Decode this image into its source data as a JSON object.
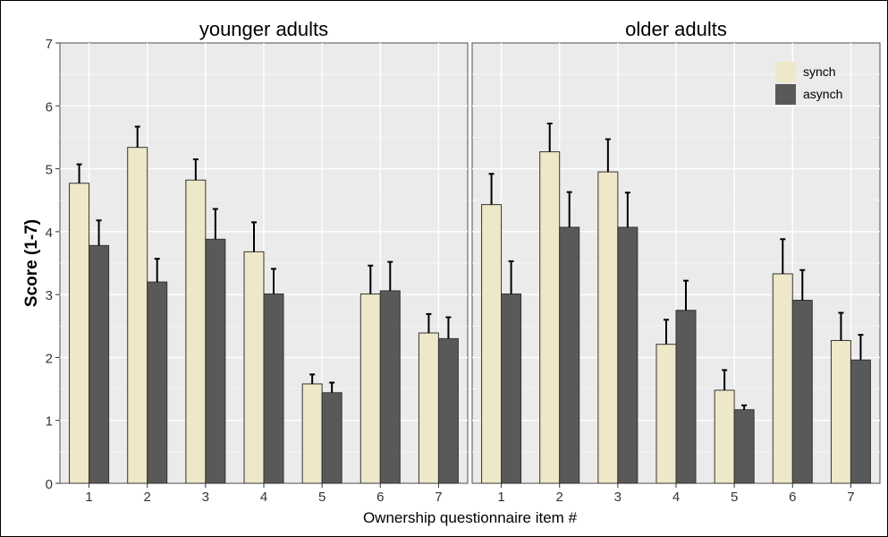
{
  "chart_data": {
    "type": "bar",
    "xlabel": "Ownership questionnaire item #",
    "ylabel": "Score (1-7)",
    "ylim": [
      0,
      7
    ],
    "yticks": [
      0,
      1,
      2,
      3,
      4,
      5,
      6,
      7
    ],
    "categories": [
      "1",
      "2",
      "3",
      "4",
      "5",
      "6",
      "7"
    ],
    "grid": true,
    "legend": {
      "placement": "top-right of right panel",
      "entries": [
        {
          "name": "synch",
          "color": "#efe8c8"
        },
        {
          "name": "asynch",
          "color": "#595959"
        }
      ]
    },
    "panels": [
      {
        "title": "younger adults",
        "series": [
          {
            "name": "synch",
            "values": [
              4.77,
              5.34,
              4.82,
              3.68,
              1.58,
              3.01,
              2.39
            ],
            "error": [
              0.3,
              0.33,
              0.33,
              0.47,
              0.15,
              0.45,
              0.3
            ]
          },
          {
            "name": "asynch",
            "values": [
              3.78,
              3.2,
              3.88,
              3.01,
              1.44,
              3.06,
              2.3
            ],
            "error": [
              0.4,
              0.37,
              0.48,
              0.4,
              0.16,
              0.46,
              0.34
            ]
          }
        ]
      },
      {
        "title": "older adults",
        "series": [
          {
            "name": "synch",
            "values": [
              4.43,
              5.27,
              4.95,
              2.21,
              1.48,
              3.33,
              2.27
            ],
            "error": [
              0.49,
              0.45,
              0.52,
              0.39,
              0.32,
              0.55,
              0.44
            ]
          },
          {
            "name": "asynch",
            "values": [
              3.01,
              4.07,
              4.07,
              2.75,
              1.17,
              2.91,
              1.96
            ],
            "error": [
              0.52,
              0.56,
              0.55,
              0.47,
              0.07,
              0.48,
              0.4
            ]
          }
        ]
      }
    ]
  }
}
